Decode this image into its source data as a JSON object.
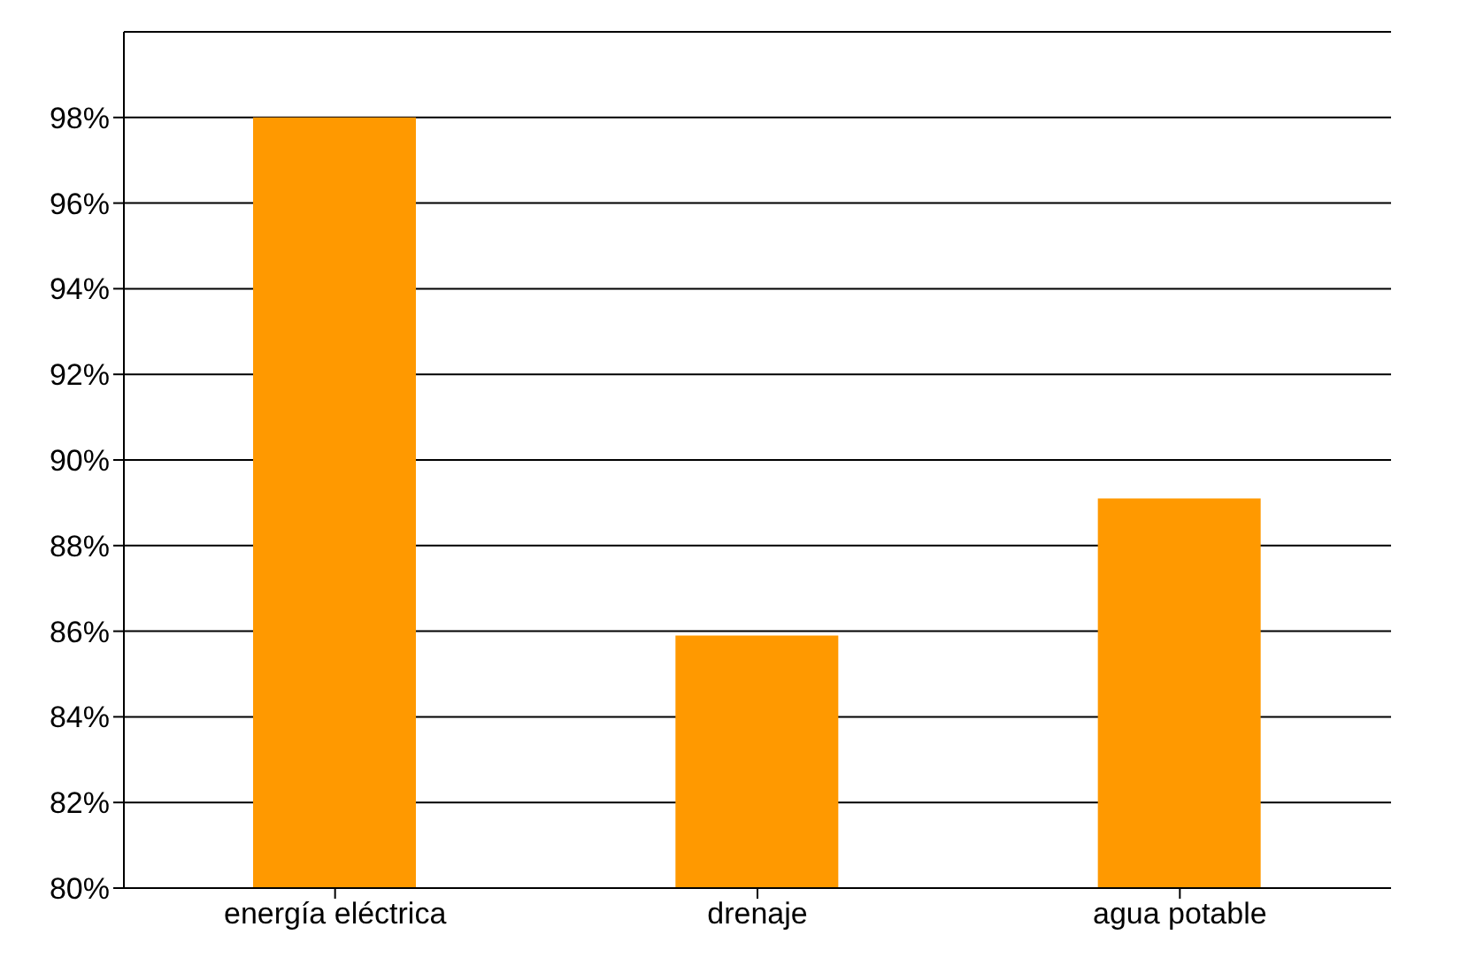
{
  "chart_data": {
    "type": "bar",
    "categories": [
      "energía eléctrica",
      "drenaje",
      "agua potable"
    ],
    "values": [
      98,
      85.9,
      89.1
    ],
    "color": "#ff9900",
    "ylim": [
      80,
      100
    ],
    "yticks": [
      {
        "value": 80,
        "label": "80%"
      },
      {
        "value": 82,
        "label": "82%"
      },
      {
        "value": 84,
        "label": "84%"
      },
      {
        "value": 86,
        "label": "86%"
      },
      {
        "value": 88,
        "label": "88%"
      },
      {
        "value": 90,
        "label": "90%"
      },
      {
        "value": 92,
        "label": "92%"
      },
      {
        "value": 94,
        "label": "94%"
      },
      {
        "value": 96,
        "label": "96%"
      },
      {
        "value": 98,
        "label": "98%"
      }
    ],
    "grid": "y"
  }
}
